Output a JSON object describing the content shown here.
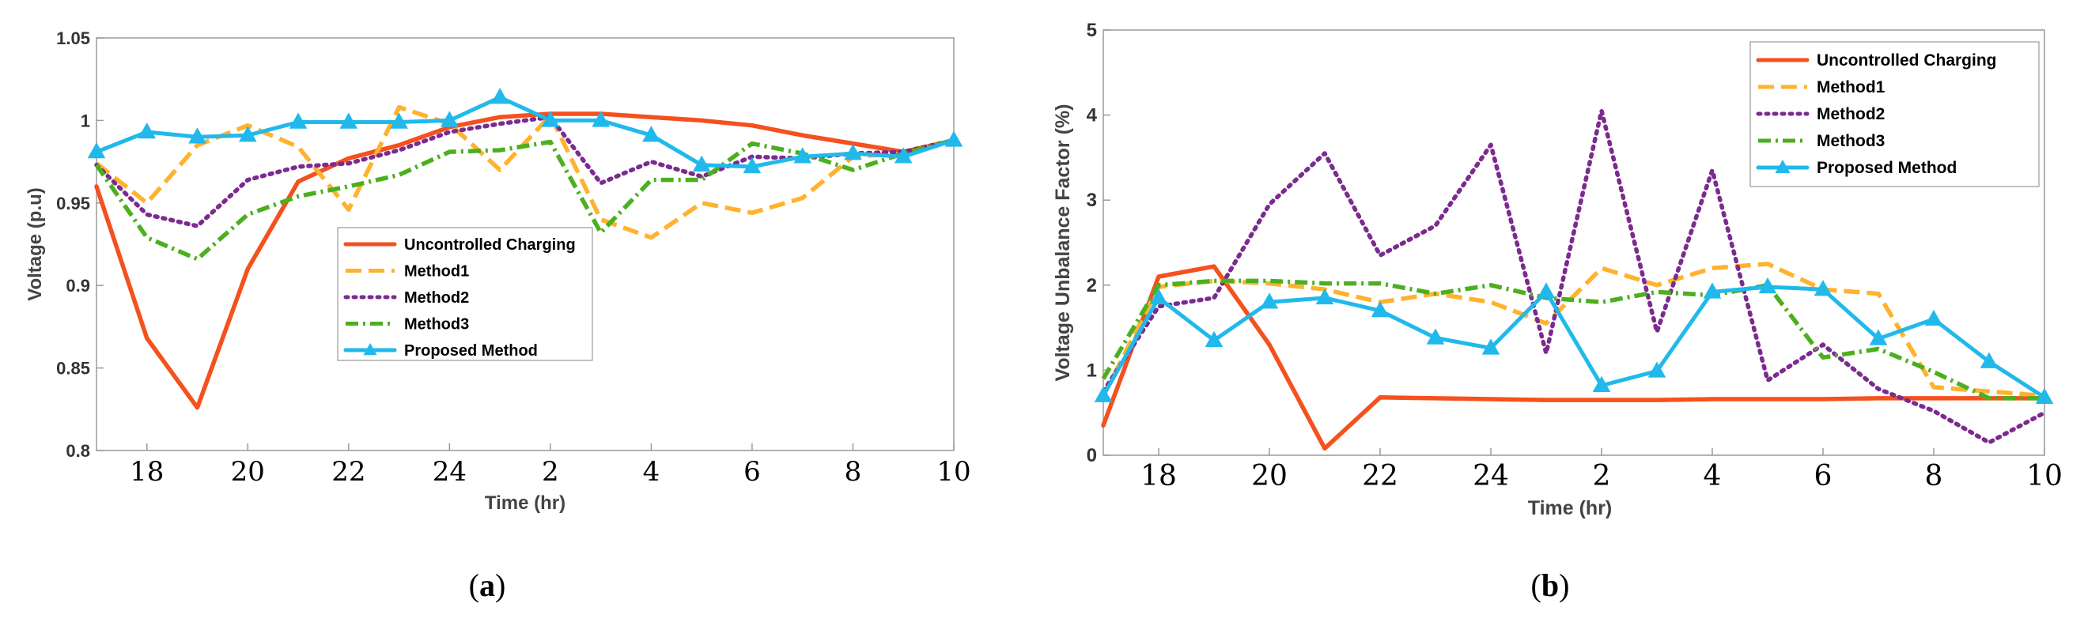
{
  "colors": {
    "uncontrolled": "#f4511e",
    "method1": "#ffb22d",
    "method2": "#7b2b8f",
    "method3": "#4caf1f",
    "proposed": "#21b9eb"
  },
  "chart_data": [
    {
      "id": "a",
      "type": "line",
      "caption_letter": "a",
      "xlabel": "Time (hr)",
      "ylabel": "Voltage (p.u)",
      "ylim": [
        0.8,
        1.05
      ],
      "yticks": [
        "0.8",
        "0.85",
        "0.9",
        "0.95",
        "1",
        "1.05"
      ],
      "x": [
        17,
        18,
        19,
        20,
        21,
        22,
        23,
        24,
        25,
        26,
        27,
        28,
        29,
        30,
        31,
        32,
        33,
        34
      ],
      "xticks": [
        "18",
        "20",
        "22",
        "24",
        "2",
        "4",
        "6",
        "8",
        "10"
      ],
      "legend_position": "center",
      "series": [
        {
          "name": "Uncontrolled Charging",
          "style": "solid",
          "values": [
            0.96,
            0.868,
            0.826,
            0.91,
            0.963,
            0.977,
            0.985,
            0.996,
            1.002,
            1.004,
            1.004,
            1.002,
            1.0,
            0.997,
            0.991,
            0.986,
            0.981,
            0.988
          ]
        },
        {
          "name": "Method1",
          "style": "dashed",
          "values": [
            0.974,
            0.95,
            0.985,
            0.997,
            0.984,
            0.946,
            1.008,
            0.998,
            0.97,
            1.003,
            0.94,
            0.929,
            0.95,
            0.944,
            0.953,
            0.978,
            0.98,
            0.988
          ]
        },
        {
          "name": "Method2",
          "style": "dotted",
          "values": [
            0.973,
            0.943,
            0.936,
            0.964,
            0.972,
            0.974,
            0.982,
            0.993,
            0.998,
            1.002,
            0.962,
            0.975,
            0.966,
            0.978,
            0.977,
            0.98,
            0.981,
            0.988
          ]
        },
        {
          "name": "Method3",
          "style": "dashdot",
          "values": [
            0.973,
            0.929,
            0.916,
            0.943,
            0.954,
            0.96,
            0.967,
            0.981,
            0.982,
            0.987,
            0.932,
            0.964,
            0.964,
            0.986,
            0.98,
            0.97,
            0.98,
            0.988
          ]
        },
        {
          "name": "Proposed Method",
          "style": "marker",
          "values": [
            0.981,
            0.993,
            0.99,
            0.991,
            0.999,
            0.999,
            0.999,
            1.0,
            1.014,
            1.0,
            1.0,
            0.991,
            0.973,
            0.972,
            0.978,
            0.98,
            0.978,
            0.988
          ]
        }
      ]
    },
    {
      "id": "b",
      "type": "line",
      "caption_letter": "b",
      "xlabel": "Time (hr)",
      "ylabel": "Voltage Unbalance Factor (%)",
      "ylim": [
        0,
        5
      ],
      "yticks": [
        "0",
        "1",
        "2",
        "3",
        "4",
        "5"
      ],
      "x": [
        17,
        18,
        19,
        20,
        21,
        22,
        23,
        24,
        25,
        26,
        27,
        28,
        29,
        30,
        31,
        32,
        33,
        34
      ],
      "xticks": [
        "18",
        "20",
        "22",
        "24",
        "2",
        "4",
        "6",
        "8",
        "10"
      ],
      "legend_position": "top-right",
      "series": [
        {
          "name": "Uncontrolled Charging",
          "style": "solid",
          "values": [
            0.35,
            2.1,
            2.22,
            1.3,
            0.08,
            0.68,
            0.67,
            0.66,
            0.65,
            0.65,
            0.65,
            0.66,
            0.66,
            0.66,
            0.67,
            0.67,
            0.67,
            0.67
          ]
        },
        {
          "name": "Method1",
          "style": "dashed",
          "values": [
            0.7,
            1.98,
            2.05,
            2.02,
            1.95,
            1.8,
            1.9,
            1.8,
            1.55,
            2.2,
            2.0,
            2.2,
            2.25,
            1.95,
            1.9,
            0.8,
            0.75,
            0.7
          ]
        },
        {
          "name": "Method2",
          "style": "dotted",
          "values": [
            0.75,
            1.75,
            1.85,
            2.95,
            3.55,
            2.35,
            2.7,
            3.65,
            1.2,
            4.05,
            1.45,
            3.35,
            0.88,
            1.3,
            0.78,
            0.52,
            0.15,
            0.5
          ]
        },
        {
          "name": "Method3",
          "style": "dashdot",
          "values": [
            0.9,
            2.0,
            2.05,
            2.05,
            2.02,
            2.02,
            1.9,
            2.0,
            1.85,
            1.8,
            1.92,
            1.88,
            2.0,
            1.15,
            1.25,
            0.98,
            0.67,
            0.67
          ]
        },
        {
          "name": "Proposed Method",
          "style": "marker",
          "values": [
            0.7,
            1.85,
            1.35,
            1.8,
            1.85,
            1.7,
            1.38,
            1.26,
            1.92,
            0.82,
            0.99,
            1.92,
            1.98,
            1.95,
            1.37,
            1.6,
            1.1,
            0.68
          ]
        }
      ]
    }
  ]
}
